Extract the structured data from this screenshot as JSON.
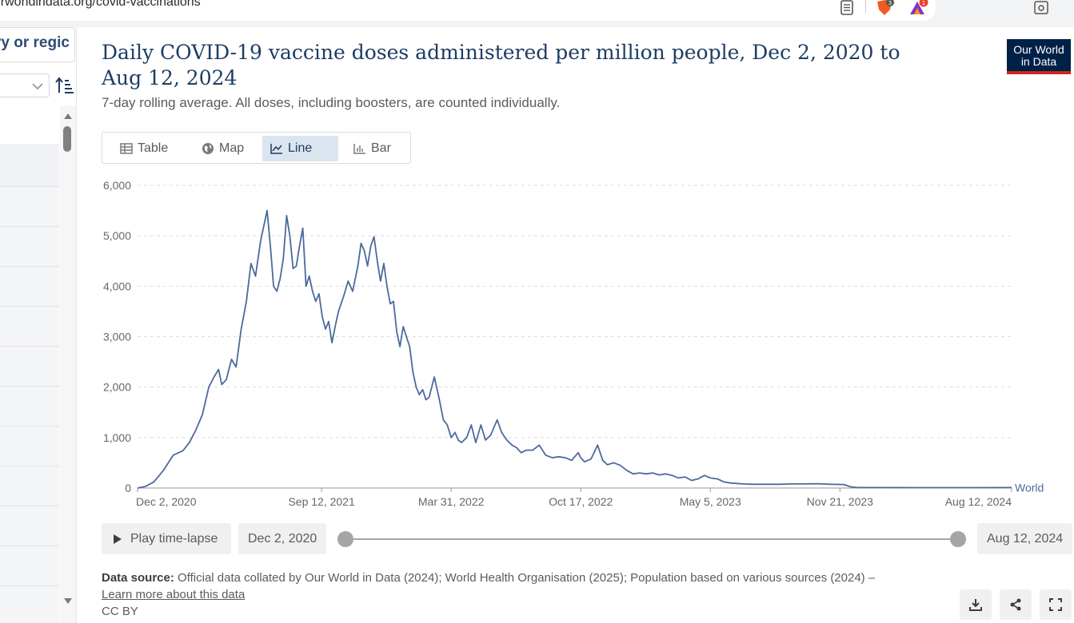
{
  "browser": {
    "url": "ourworldindata.org/covid-vaccinations",
    "brave_badge": "3",
    "rewards_badge": "1"
  },
  "sidebar": {
    "search_text": "ry or regic",
    "rows": 11
  },
  "header": {
    "title": "Daily COVID-19 vaccine doses administered per million people, Dec 2, 2020 to Aug 12, 2024",
    "subtitle": "7-day rolling average. All doses, including boosters, are counted individually.",
    "logo_line1": "Our World",
    "logo_line2": "in Data"
  },
  "tabs": [
    {
      "label": "Table",
      "icon": "table-icon",
      "active": false
    },
    {
      "label": "Map",
      "icon": "globe-icon",
      "active": false
    },
    {
      "label": "Line",
      "icon": "line-chart-icon",
      "active": true
    },
    {
      "label": "Bar",
      "icon": "bar-chart-icon",
      "active": false
    }
  ],
  "controls": {
    "play_label": "Play time-lapse",
    "start_date": "Dec 2, 2020",
    "end_date": "Aug 12, 2024",
    "range_start_fraction": 0,
    "range_end_fraction": 1
  },
  "footer": {
    "source_label": "Data source:",
    "source_text": "Official data collated by Our World in Data (2024); World Health Organisation (2025); Population based on various sources (2024) –",
    "learn_more": "Learn more about this data",
    "license": "CC BY"
  },
  "colors": {
    "line": "#4c6a9c",
    "title": "#1d3d63",
    "logo_bg": "#002147",
    "logo_accent": "#ce261e"
  },
  "chart_data": {
    "type": "line",
    "title": "Daily COVID-19 vaccine doses administered per million people",
    "xlabel": "",
    "ylabel": "",
    "ylim": [
      0,
      6000
    ],
    "yticks": [
      0,
      1000,
      2000,
      3000,
      4000,
      5000,
      6000
    ],
    "ytick_labels": [
      "0",
      "1,000",
      "2,000",
      "3,000",
      "4,000",
      "5,000",
      "6,000"
    ],
    "xlim": [
      0,
      1349
    ],
    "xticks": [
      0,
      284,
      484,
      684,
      884,
      1084,
      1349
    ],
    "xtick_labels": [
      "Dec 2, 2020",
      "Sep 12, 2021",
      "Mar 31, 2022",
      "Oct 17, 2022",
      "May 5, 2023",
      "Nov 21, 2023",
      "Aug 12, 2024"
    ],
    "grid": true,
    "series": [
      {
        "name": "World",
        "x": [
          0,
          12,
          25,
          40,
          55,
          70,
          80,
          90,
          100,
          110,
          118,
          125,
          130,
          137,
          145,
          152,
          160,
          168,
          175,
          182,
          190,
          200,
          205,
          210,
          215,
          220,
          225,
          230,
          235,
          240,
          245,
          250,
          255,
          260,
          265,
          270,
          275,
          280,
          285,
          290,
          295,
          300,
          305,
          310,
          318,
          325,
          332,
          340,
          345,
          350,
          355,
          360,
          365,
          370,
          375,
          380,
          385,
          390,
          395,
          400,
          405,
          410,
          415,
          420,
          425,
          430,
          435,
          440,
          445,
          450,
          458,
          465,
          472,
          478,
          484,
          490,
          495,
          500,
          508,
          515,
          522,
          530,
          537,
          545,
          550,
          555,
          562,
          570,
          578,
          585,
          592,
          600,
          610,
          620,
          630,
          640,
          650,
          660,
          670,
          680,
          684,
          690,
          700,
          710,
          718,
          725,
          735,
          745,
          755,
          765,
          775,
          785,
          795,
          805,
          815,
          825,
          835,
          845,
          855,
          865,
          875,
          884,
          895,
          905,
          915,
          925,
          935,
          950,
          970,
          990,
          1010,
          1030,
          1050,
          1070,
          1090,
          1100,
          1110,
          1125,
          1150,
          1200,
          1250,
          1300,
          1349
        ],
        "values": [
          0,
          30,
          120,
          350,
          650,
          740,
          900,
          1150,
          1450,
          2000,
          2200,
          2350,
          2050,
          2150,
          2550,
          2400,
          3150,
          3700,
          4450,
          4200,
          4900,
          5500,
          4800,
          4000,
          3900,
          4150,
          4550,
          5400,
          5000,
          4350,
          4400,
          4800,
          5150,
          4000,
          4200,
          3900,
          3700,
          3850,
          3400,
          3150,
          3300,
          2880,
          3200,
          3500,
          3800,
          4100,
          3900,
          4400,
          4850,
          4700,
          4400,
          4800,
          4980,
          4500,
          4100,
          4450,
          4000,
          3650,
          3700,
          3100,
          2800,
          3200,
          3000,
          2800,
          2300,
          2000,
          1850,
          1950,
          1750,
          1800,
          2200,
          1800,
          1350,
          1250,
          1000,
          1100,
          950,
          900,
          1000,
          1250,
          900,
          1250,
          950,
          1050,
          1200,
          1350,
          1100,
          950,
          850,
          800,
          700,
          750,
          750,
          850,
          650,
          600,
          620,
          600,
          550,
          700,
          600,
          520,
          580,
          850,
          550,
          460,
          500,
          450,
          350,
          280,
          300,
          280,
          300,
          260,
          280,
          250,
          200,
          220,
          150,
          180,
          250,
          200,
          180,
          120,
          100,
          90,
          80,
          75,
          75,
          75,
          80,
          80,
          85,
          75,
          70,
          25,
          10,
          10,
          10,
          8,
          8,
          8,
          10
        ]
      }
    ],
    "series_label": "World"
  }
}
